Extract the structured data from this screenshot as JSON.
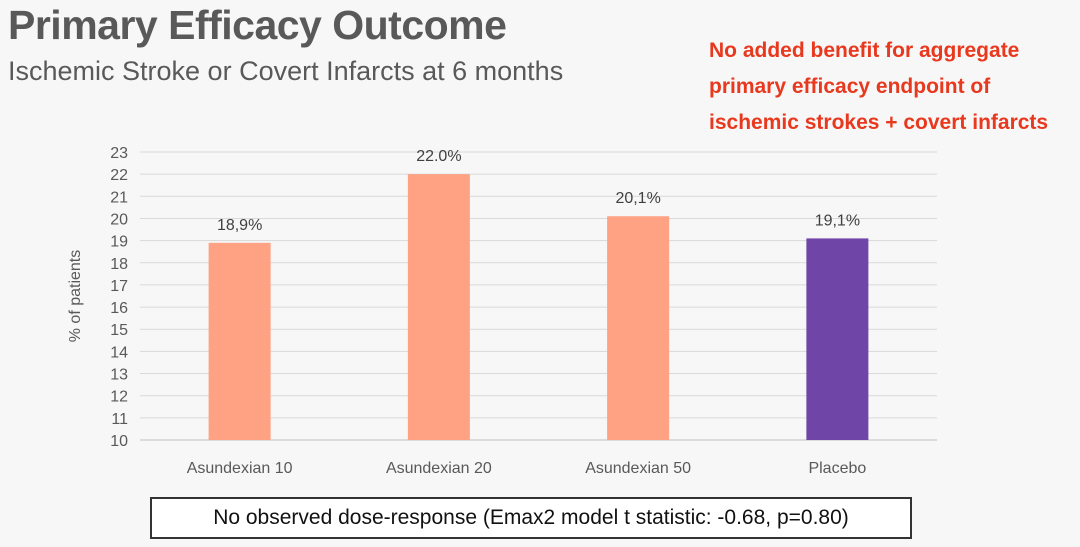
{
  "slide": {
    "title": "Primary Efficacy Outcome",
    "subtitle": "Ischemic Stroke or Covert Infarcts at 6 months",
    "callout_lines": [
      "No added benefit for aggregate",
      "primary efficacy endpoint of",
      "ischemic strokes + covert infarcts"
    ],
    "footnote": "No observed dose-response (Emax2 model t statistic: -0.68, p=0.80)"
  },
  "colors": {
    "callout": "#e8381d",
    "active_bar": "#fea283",
    "placebo_bar": "#7045a8",
    "grid": "#d9d9d9",
    "text": "#595959"
  },
  "chart_data": {
    "type": "bar",
    "title": "",
    "xlabel": "",
    "ylabel": "% of patients",
    "ylim": [
      10,
      23
    ],
    "yticks": [
      10,
      11,
      12,
      13,
      14,
      15,
      16,
      17,
      18,
      19,
      20,
      21,
      22,
      23
    ],
    "grid": true,
    "categories": [
      "Asundexian 10",
      "Asundexian 20",
      "Asundexian 50",
      "Placebo"
    ],
    "values": [
      18.9,
      22.0,
      20.1,
      19.1
    ],
    "data_labels": [
      "18,9%",
      "22.0%",
      "20,1%",
      "19,1%"
    ],
    "bar_colors": [
      "#fea283",
      "#fea283",
      "#fea283",
      "#7045a8"
    ]
  }
}
